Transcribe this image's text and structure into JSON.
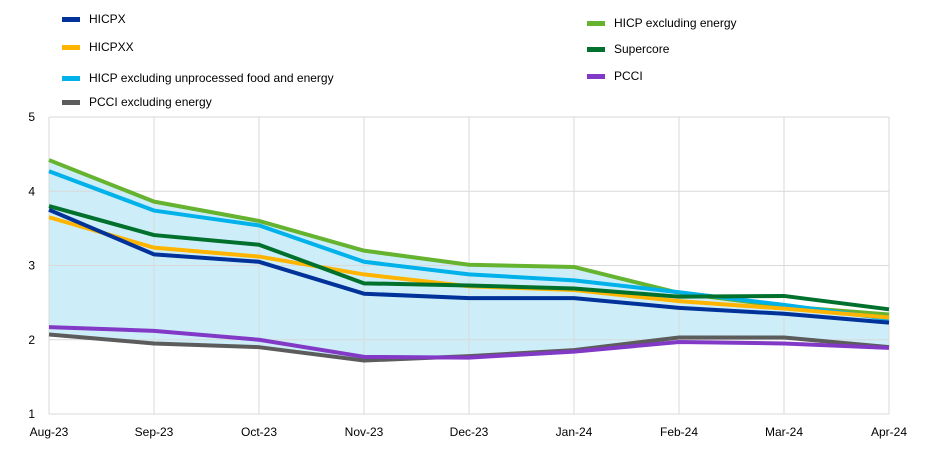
{
  "chart_data": {
    "type": "line",
    "title": "",
    "xlabel": "",
    "ylabel": "",
    "categories": [
      "Aug-23",
      "Sep-23",
      "Oct-23",
      "Nov-23",
      "Dec-23",
      "Jan-24",
      "Feb-24",
      "Mar-24",
      "Apr-24"
    ],
    "yticks": [
      1,
      2,
      3,
      4,
      5
    ],
    "ylim": [
      1,
      5
    ],
    "grid": true,
    "legend_position": "top",
    "shaded_range": {
      "fill": "#cdeef9",
      "between": [
        "HICP excluding energy",
        "PCCI excluding energy"
      ]
    },
    "series": [
      {
        "name": "HICPX",
        "color": "#003299",
        "values": [
          3.75,
          3.15,
          3.05,
          2.62,
          2.56,
          2.56,
          2.43,
          2.35,
          2.23
        ]
      },
      {
        "name": "HICPXX",
        "color": "#ffb400",
        "values": [
          3.65,
          3.24,
          3.12,
          2.88,
          2.72,
          2.67,
          2.52,
          2.42,
          2.3
        ]
      },
      {
        "name": "HICP excluding unprocessed food and energy",
        "color": "#00b1ea",
        "values": [
          4.27,
          3.74,
          3.54,
          3.05,
          2.88,
          2.8,
          2.64,
          2.47,
          2.28
        ]
      },
      {
        "name": "PCCI excluding energy",
        "color": "#5c5c5c",
        "values": [
          2.07,
          1.95,
          1.9,
          1.72,
          1.78,
          1.86,
          2.03,
          2.03,
          1.9
        ]
      },
      {
        "name": "HICP excluding energy",
        "color": "#65b32e",
        "values": [
          4.42,
          3.86,
          3.6,
          3.2,
          3.01,
          2.98,
          2.63,
          2.45,
          2.34
        ]
      },
      {
        "name": "Supercore",
        "color": "#00712d",
        "values": [
          3.8,
          3.41,
          3.28,
          2.76,
          2.73,
          2.69,
          2.58,
          2.59,
          2.41
        ]
      },
      {
        "name": "PCCI",
        "color": "#8139c6",
        "values": [
          2.17,
          2.12,
          2.0,
          1.77,
          1.76,
          1.84,
          1.97,
          1.95,
          1.89
        ]
      }
    ]
  }
}
